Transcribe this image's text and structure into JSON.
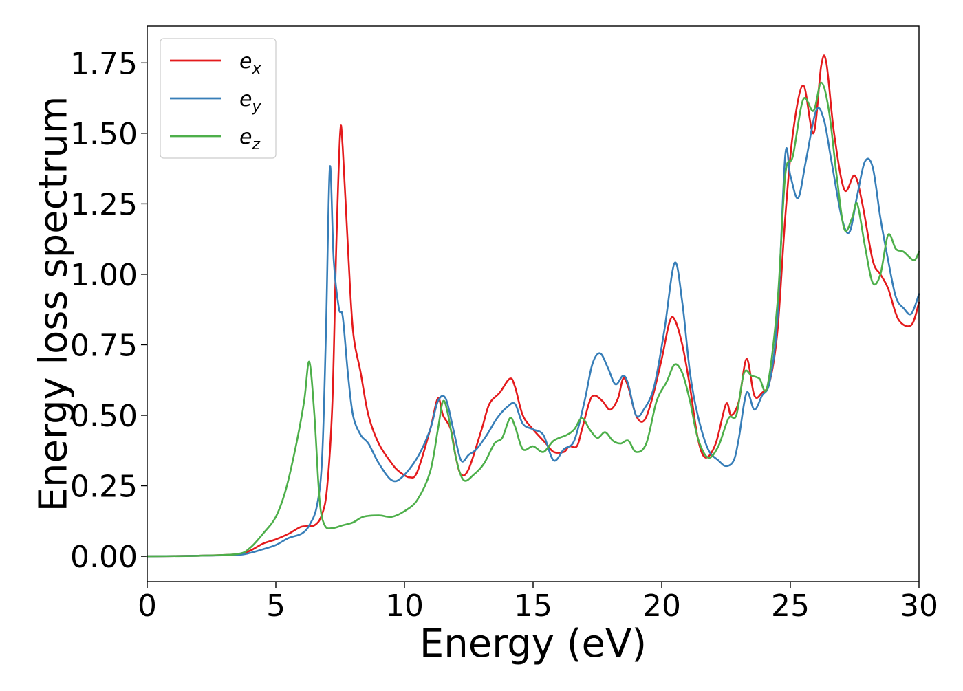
{
  "chart_data": {
    "type": "line",
    "title": "",
    "xlabel": "Energy (eV)",
    "ylabel": "Energy loss spectrum",
    "xlim": [
      0,
      30
    ],
    "ylim": [
      -0.09,
      1.88
    ],
    "grid": false,
    "legend_position": "top-left",
    "x_ticks": [
      0,
      5,
      10,
      15,
      20,
      25,
      30
    ],
    "x_tick_labels": [
      "0",
      "5",
      "10",
      "15",
      "20",
      "25",
      "30"
    ],
    "y_ticks": [
      0.0,
      0.25,
      0.5,
      0.75,
      1.0,
      1.25,
      1.5,
      1.75
    ],
    "y_tick_labels": [
      "0.00",
      "0.25",
      "0.50",
      "0.75",
      "1.00",
      "1.25",
      "1.50",
      "1.75"
    ],
    "series": [
      {
        "name": "e_x",
        "legend_base": "e",
        "legend_sub": "x",
        "color": "#e41a1c",
        "points": [
          [
            0,
            0.0
          ],
          [
            2,
            0.002
          ],
          [
            3.5,
            0.007
          ],
          [
            4,
            0.02
          ],
          [
            4.5,
            0.045
          ],
          [
            5,
            0.06
          ],
          [
            5.5,
            0.08
          ],
          [
            6,
            0.105
          ],
          [
            6.5,
            0.11
          ],
          [
            6.8,
            0.15
          ],
          [
            7.0,
            0.25
          ],
          [
            7.2,
            0.55
          ],
          [
            7.35,
            1.1
          ],
          [
            7.5,
            1.5
          ],
          [
            7.6,
            1.45
          ],
          [
            7.8,
            1.1
          ],
          [
            8.0,
            0.8
          ],
          [
            8.3,
            0.65
          ],
          [
            8.6,
            0.5
          ],
          [
            9.0,
            0.4
          ],
          [
            9.5,
            0.33
          ],
          [
            9.8,
            0.3
          ],
          [
            10.2,
            0.28
          ],
          [
            10.5,
            0.3
          ],
          [
            11.0,
            0.45
          ],
          [
            11.3,
            0.56
          ],
          [
            11.5,
            0.5
          ],
          [
            11.8,
            0.45
          ],
          [
            12.0,
            0.35
          ],
          [
            12.2,
            0.29
          ],
          [
            12.5,
            0.31
          ],
          [
            13.0,
            0.45
          ],
          [
            13.3,
            0.54
          ],
          [
            13.7,
            0.58
          ],
          [
            14.1,
            0.63
          ],
          [
            14.3,
            0.6
          ],
          [
            14.6,
            0.5
          ],
          [
            15.0,
            0.45
          ],
          [
            15.5,
            0.4
          ],
          [
            15.8,
            0.37
          ],
          [
            16.2,
            0.37
          ],
          [
            16.4,
            0.39
          ],
          [
            16.7,
            0.39
          ],
          [
            16.9,
            0.45
          ],
          [
            17.2,
            0.55
          ],
          [
            17.4,
            0.57
          ],
          [
            17.7,
            0.55
          ],
          [
            18.0,
            0.52
          ],
          [
            18.3,
            0.56
          ],
          [
            18.5,
            0.63
          ],
          [
            18.7,
            0.6
          ],
          [
            19.0,
            0.5
          ],
          [
            19.3,
            0.48
          ],
          [
            19.6,
            0.55
          ],
          [
            20.0,
            0.7
          ],
          [
            20.3,
            0.83
          ],
          [
            20.5,
            0.84
          ],
          [
            20.8,
            0.75
          ],
          [
            21.1,
            0.6
          ],
          [
            21.4,
            0.42
          ],
          [
            21.7,
            0.35
          ],
          [
            22.1,
            0.4
          ],
          [
            22.5,
            0.54
          ],
          [
            22.7,
            0.5
          ],
          [
            23.0,
            0.55
          ],
          [
            23.3,
            0.7
          ],
          [
            23.6,
            0.57
          ],
          [
            23.9,
            0.58
          ],
          [
            24.2,
            0.62
          ],
          [
            24.5,
            0.8
          ],
          [
            24.8,
            1.2
          ],
          [
            25.1,
            1.5
          ],
          [
            25.5,
            1.67
          ],
          [
            25.9,
            1.5
          ],
          [
            26.2,
            1.74
          ],
          [
            26.4,
            1.75
          ],
          [
            26.7,
            1.5
          ],
          [
            27.1,
            1.3
          ],
          [
            27.5,
            1.35
          ],
          [
            27.8,
            1.25
          ],
          [
            28.2,
            1.05
          ],
          [
            28.5,
            1.0
          ],
          [
            28.8,
            0.95
          ],
          [
            29.2,
            0.84
          ],
          [
            29.7,
            0.82
          ],
          [
            30,
            0.9
          ]
        ]
      },
      {
        "name": "e_y",
        "legend_base": "e",
        "legend_sub": "y",
        "color": "#377eb8",
        "points": [
          [
            0,
            0.0
          ],
          [
            2,
            0.002
          ],
          [
            3.5,
            0.005
          ],
          [
            4,
            0.012
          ],
          [
            4.5,
            0.025
          ],
          [
            5,
            0.04
          ],
          [
            5.5,
            0.065
          ],
          [
            6,
            0.08
          ],
          [
            6.3,
            0.11
          ],
          [
            6.6,
            0.18
          ],
          [
            6.8,
            0.35
          ],
          [
            6.95,
            0.8
          ],
          [
            7.1,
            1.38
          ],
          [
            7.25,
            1.05
          ],
          [
            7.45,
            0.88
          ],
          [
            7.6,
            0.85
          ],
          [
            7.8,
            0.65
          ],
          [
            8.0,
            0.5
          ],
          [
            8.3,
            0.43
          ],
          [
            8.6,
            0.4
          ],
          [
            9.0,
            0.33
          ],
          [
            9.5,
            0.27
          ],
          [
            9.9,
            0.28
          ],
          [
            10.5,
            0.35
          ],
          [
            11.0,
            0.45
          ],
          [
            11.3,
            0.55
          ],
          [
            11.6,
            0.56
          ],
          [
            11.9,
            0.45
          ],
          [
            12.2,
            0.34
          ],
          [
            12.5,
            0.36
          ],
          [
            12.8,
            0.38
          ],
          [
            13.2,
            0.43
          ],
          [
            13.6,
            0.49
          ],
          [
            14.0,
            0.53
          ],
          [
            14.3,
            0.54
          ],
          [
            14.6,
            0.47
          ],
          [
            15.0,
            0.45
          ],
          [
            15.4,
            0.43
          ],
          [
            15.8,
            0.34
          ],
          [
            16.2,
            0.38
          ],
          [
            16.6,
            0.41
          ],
          [
            17.0,
            0.55
          ],
          [
            17.3,
            0.68
          ],
          [
            17.6,
            0.72
          ],
          [
            17.9,
            0.67
          ],
          [
            18.2,
            0.61
          ],
          [
            18.5,
            0.64
          ],
          [
            18.7,
            0.61
          ],
          [
            19.0,
            0.5
          ],
          [
            19.3,
            0.52
          ],
          [
            19.7,
            0.6
          ],
          [
            20.1,
            0.8
          ],
          [
            20.5,
            1.04
          ],
          [
            20.8,
            0.9
          ],
          [
            21.1,
            0.65
          ],
          [
            21.4,
            0.5
          ],
          [
            21.8,
            0.38
          ],
          [
            22.2,
            0.34
          ],
          [
            22.5,
            0.32
          ],
          [
            22.8,
            0.34
          ],
          [
            23.0,
            0.42
          ],
          [
            23.3,
            0.58
          ],
          [
            23.6,
            0.52
          ],
          [
            23.9,
            0.57
          ],
          [
            24.2,
            0.62
          ],
          [
            24.5,
            0.85
          ],
          [
            24.8,
            1.42
          ],
          [
            25.0,
            1.35
          ],
          [
            25.3,
            1.27
          ],
          [
            25.6,
            1.4
          ],
          [
            26.0,
            1.58
          ],
          [
            26.3,
            1.55
          ],
          [
            26.6,
            1.4
          ],
          [
            27.0,
            1.2
          ],
          [
            27.3,
            1.15
          ],
          [
            27.6,
            1.28
          ],
          [
            27.9,
            1.4
          ],
          [
            28.2,
            1.38
          ],
          [
            28.5,
            1.2
          ],
          [
            28.8,
            1.05
          ],
          [
            29.1,
            0.92
          ],
          [
            29.4,
            0.88
          ],
          [
            29.7,
            0.86
          ],
          [
            30,
            0.93
          ]
        ]
      },
      {
        "name": "e_z",
        "legend_base": "e",
        "legend_sub": "z",
        "color": "#4daf4a",
        "points": [
          [
            0,
            0.0
          ],
          [
            2,
            0.002
          ],
          [
            3.5,
            0.008
          ],
          [
            4,
            0.03
          ],
          [
            4.5,
            0.08
          ],
          [
            5,
            0.14
          ],
          [
            5.4,
            0.24
          ],
          [
            5.8,
            0.4
          ],
          [
            6.1,
            0.55
          ],
          [
            6.3,
            0.69
          ],
          [
            6.5,
            0.5
          ],
          [
            6.7,
            0.2
          ],
          [
            6.9,
            0.11
          ],
          [
            7.2,
            0.1
          ],
          [
            7.6,
            0.11
          ],
          [
            8.0,
            0.12
          ],
          [
            8.4,
            0.14
          ],
          [
            9.0,
            0.145
          ],
          [
            9.5,
            0.14
          ],
          [
            10.0,
            0.16
          ],
          [
            10.5,
            0.2
          ],
          [
            11.0,
            0.3
          ],
          [
            11.3,
            0.45
          ],
          [
            11.5,
            0.55
          ],
          [
            11.7,
            0.5
          ],
          [
            12.0,
            0.35
          ],
          [
            12.3,
            0.27
          ],
          [
            12.7,
            0.29
          ],
          [
            13.1,
            0.33
          ],
          [
            13.5,
            0.4
          ],
          [
            13.8,
            0.42
          ],
          [
            14.1,
            0.49
          ],
          [
            14.3,
            0.46
          ],
          [
            14.6,
            0.38
          ],
          [
            15.0,
            0.39
          ],
          [
            15.4,
            0.37
          ],
          [
            15.8,
            0.41
          ],
          [
            16.3,
            0.43
          ],
          [
            16.6,
            0.45
          ],
          [
            16.9,
            0.49
          ],
          [
            17.2,
            0.45
          ],
          [
            17.5,
            0.42
          ],
          [
            17.8,
            0.44
          ],
          [
            18.1,
            0.41
          ],
          [
            18.4,
            0.4
          ],
          [
            18.7,
            0.41
          ],
          [
            19.0,
            0.37
          ],
          [
            19.4,
            0.4
          ],
          [
            19.8,
            0.55
          ],
          [
            20.2,
            0.62
          ],
          [
            20.5,
            0.68
          ],
          [
            20.8,
            0.65
          ],
          [
            21.1,
            0.55
          ],
          [
            21.4,
            0.42
          ],
          [
            21.8,
            0.35
          ],
          [
            22.2,
            0.39
          ],
          [
            22.6,
            0.49
          ],
          [
            22.9,
            0.5
          ],
          [
            23.2,
            0.65
          ],
          [
            23.5,
            0.64
          ],
          [
            23.8,
            0.63
          ],
          [
            24.1,
            0.6
          ],
          [
            24.5,
            0.9
          ],
          [
            24.8,
            1.35
          ],
          [
            25.1,
            1.42
          ],
          [
            25.5,
            1.62
          ],
          [
            25.9,
            1.58
          ],
          [
            26.2,
            1.68
          ],
          [
            26.5,
            1.58
          ],
          [
            26.8,
            1.35
          ],
          [
            27.1,
            1.16
          ],
          [
            27.4,
            1.2
          ],
          [
            27.6,
            1.25
          ],
          [
            27.9,
            1.1
          ],
          [
            28.2,
            0.97
          ],
          [
            28.5,
            1.0
          ],
          [
            28.8,
            1.14
          ],
          [
            29.1,
            1.09
          ],
          [
            29.4,
            1.08
          ],
          [
            29.8,
            1.05
          ],
          [
            30,
            1.08
          ]
        ]
      }
    ]
  }
}
